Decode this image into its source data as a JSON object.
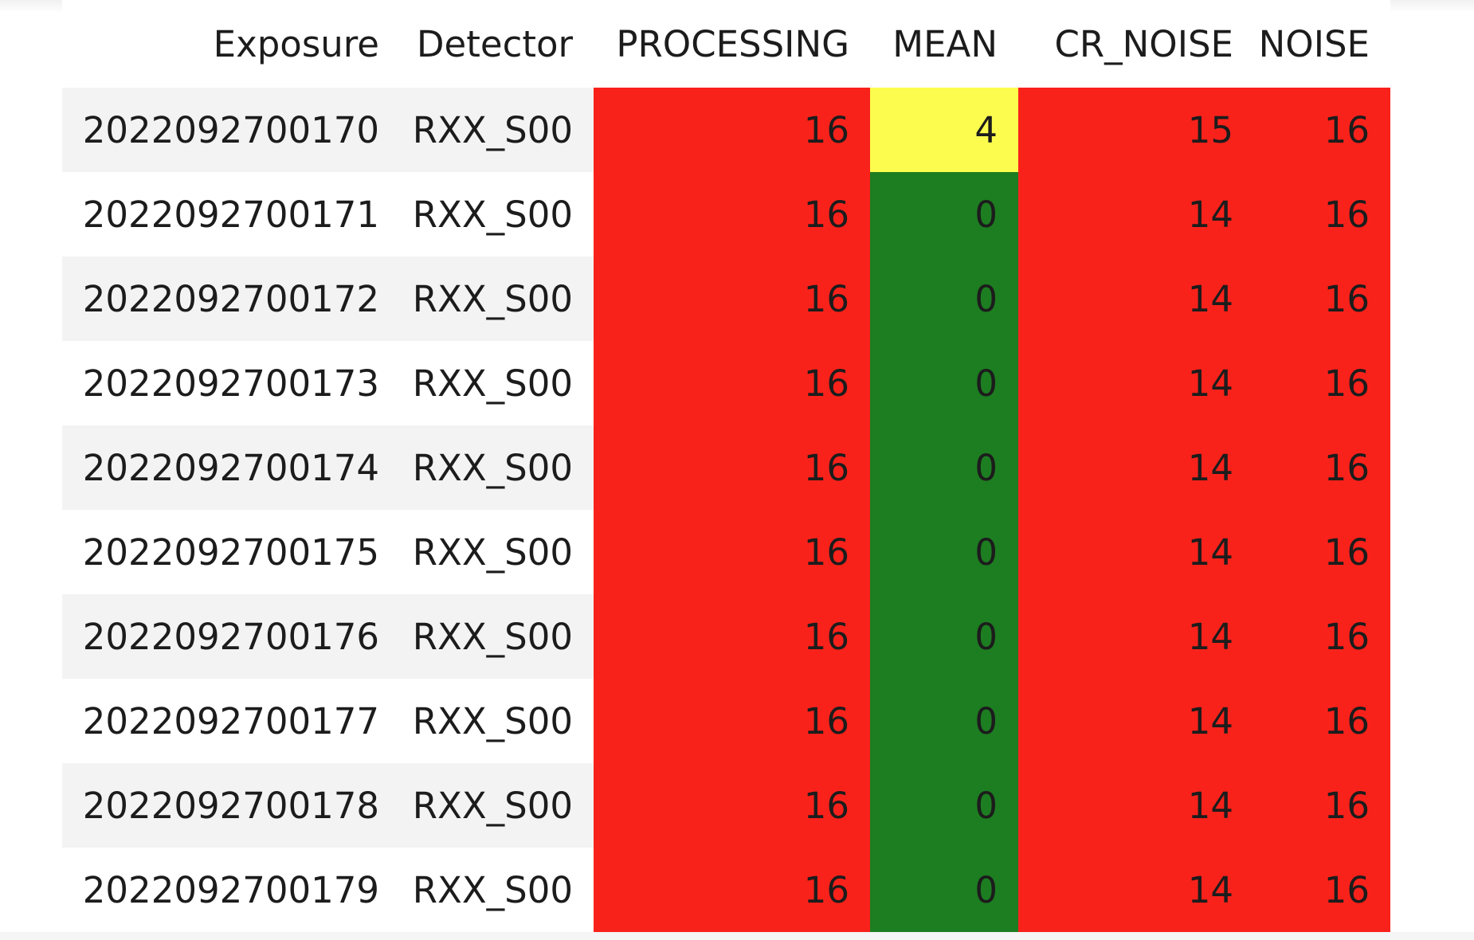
{
  "palette": {
    "fail": "#f9221b",
    "warn": "#fcfc4e",
    "ok": "#1d7d21",
    "row_stripe": "#f3f3f4",
    "page_background": "#ffffff",
    "bottom_strip": "#f5f5f6",
    "text": "#1c1c1c"
  },
  "table": {
    "columns": [
      {
        "key": "exposure",
        "label": "Exposure"
      },
      {
        "key": "detector",
        "label": "Detector"
      },
      {
        "key": "processing",
        "label": "PROCESSING"
      },
      {
        "key": "mean",
        "label": "MEAN"
      },
      {
        "key": "cr_noise",
        "label": "CR_NOISE"
      },
      {
        "key": "noise",
        "label": "NOISE"
      }
    ],
    "rows": [
      {
        "exposure": "2022092700170",
        "detector": "RXX_S00",
        "processing": "16",
        "mean": "4",
        "cr_noise": "15",
        "noise": "16",
        "status": {
          "processing": "fail",
          "mean": "warn",
          "cr_noise": "fail",
          "noise": "fail"
        }
      },
      {
        "exposure": "2022092700171",
        "detector": "RXX_S00",
        "processing": "16",
        "mean": "0",
        "cr_noise": "14",
        "noise": "16",
        "status": {
          "processing": "fail",
          "mean": "ok",
          "cr_noise": "fail",
          "noise": "fail"
        }
      },
      {
        "exposure": "2022092700172",
        "detector": "RXX_S00",
        "processing": "16",
        "mean": "0",
        "cr_noise": "14",
        "noise": "16",
        "status": {
          "processing": "fail",
          "mean": "ok",
          "cr_noise": "fail",
          "noise": "fail"
        }
      },
      {
        "exposure": "2022092700173",
        "detector": "RXX_S00",
        "processing": "16",
        "mean": "0",
        "cr_noise": "14",
        "noise": "16",
        "status": {
          "processing": "fail",
          "mean": "ok",
          "cr_noise": "fail",
          "noise": "fail"
        }
      },
      {
        "exposure": "2022092700174",
        "detector": "RXX_S00",
        "processing": "16",
        "mean": "0",
        "cr_noise": "14",
        "noise": "16",
        "status": {
          "processing": "fail",
          "mean": "ok",
          "cr_noise": "fail",
          "noise": "fail"
        }
      },
      {
        "exposure": "2022092700175",
        "detector": "RXX_S00",
        "processing": "16",
        "mean": "0",
        "cr_noise": "14",
        "noise": "16",
        "status": {
          "processing": "fail",
          "mean": "ok",
          "cr_noise": "fail",
          "noise": "fail"
        }
      },
      {
        "exposure": "2022092700176",
        "detector": "RXX_S00",
        "processing": "16",
        "mean": "0",
        "cr_noise": "14",
        "noise": "16",
        "status": {
          "processing": "fail",
          "mean": "ok",
          "cr_noise": "fail",
          "noise": "fail"
        }
      },
      {
        "exposure": "2022092700177",
        "detector": "RXX_S00",
        "processing": "16",
        "mean": "0",
        "cr_noise": "14",
        "noise": "16",
        "status": {
          "processing": "fail",
          "mean": "ok",
          "cr_noise": "fail",
          "noise": "fail"
        }
      },
      {
        "exposure": "2022092700178",
        "detector": "RXX_S00",
        "processing": "16",
        "mean": "0",
        "cr_noise": "14",
        "noise": "16",
        "status": {
          "processing": "fail",
          "mean": "ok",
          "cr_noise": "fail",
          "noise": "fail"
        }
      },
      {
        "exposure": "2022092700179",
        "detector": "RXX_S00",
        "processing": "16",
        "mean": "0",
        "cr_noise": "14",
        "noise": "16",
        "status": {
          "processing": "fail",
          "mean": "ok",
          "cr_noise": "fail",
          "noise": "fail"
        }
      }
    ]
  }
}
